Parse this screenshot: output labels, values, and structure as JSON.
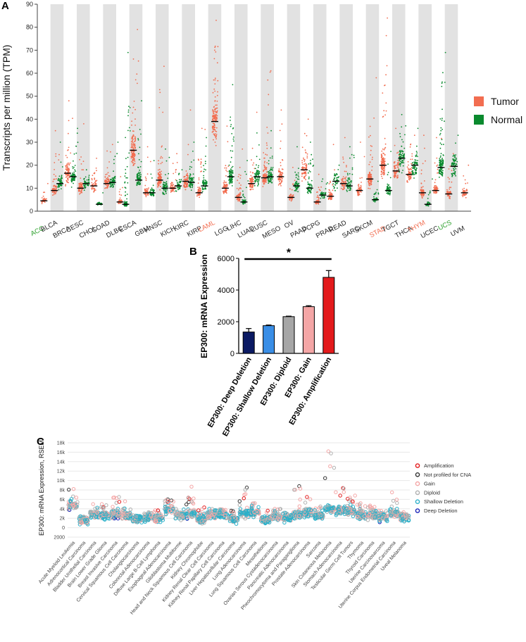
{
  "chart_data": [
    {
      "panel": "A",
      "type": "scatter",
      "ylabel": "Transcripts per million (TPM)",
      "ylim": [
        0,
        90
      ],
      "yticks": [
        0,
        10,
        20,
        30,
        40,
        50,
        60,
        70,
        80,
        90
      ],
      "legend": [
        {
          "name": "Tumor",
          "color": "#f26d50"
        },
        {
          "name": "Normal",
          "color": "#0a8a2e"
        }
      ],
      "cancers": [
        {
          "name": "ACC",
          "color": "#2ca02c",
          "tumor": 4.5,
          "normal": null,
          "tmax": 12,
          "nmax": null
        },
        {
          "name": "BLCA",
          "color": "#222222",
          "tumor": 9,
          "normal": 12,
          "tmax": 35,
          "nmax": 30
        },
        {
          "name": "BRCA",
          "color": "#222222",
          "tumor": 16.5,
          "normal": 15,
          "tmax": 48,
          "nmax": 36
        },
        {
          "name": "CESC",
          "color": "#222222",
          "tumor": 10,
          "normal": 12,
          "tmax": 38,
          "nmax": 18
        },
        {
          "name": "CHOL",
          "color": "#222222",
          "tumor": 11,
          "normal": 3,
          "tmax": 23,
          "nmax": 8
        },
        {
          "name": "COAD",
          "color": "#222222",
          "tumor": 12,
          "normal": 12.5,
          "tmax": 29,
          "nmax": 30
        },
        {
          "name": "DLBC",
          "color": "#222222",
          "tumor": 4,
          "normal": 3,
          "tmax": 15,
          "nmax": 69
        },
        {
          "name": "ESCA",
          "color": "#222222",
          "tumor": 26.5,
          "normal": 13.5,
          "tmax": 79,
          "nmax": 48
        },
        {
          "name": "GBM",
          "color": "#222222",
          "tumor": 8,
          "normal": 8,
          "tmax": 28,
          "nmax": 22
        },
        {
          "name": "HNSC",
          "color": "#222222",
          "tumor": 13.5,
          "normal": 10,
          "tmax": 63,
          "nmax": 27
        },
        {
          "name": "KICH",
          "color": "#222222",
          "tumor": 10,
          "normal": 11,
          "tmax": 25,
          "nmax": 18
        },
        {
          "name": "KIRC",
          "color": "#222222",
          "tumor": 13,
          "normal": 12.5,
          "tmax": 44,
          "nmax": 30
        },
        {
          "name": "KIRP",
          "color": "#222222",
          "tumor": 8,
          "normal": 11,
          "tmax": 36,
          "nmax": 32
        },
        {
          "name": "LAML",
          "color": "#f26d50",
          "tumor": 39,
          "normal": null,
          "tmax": 83,
          "nmax": null
        },
        {
          "name": "LGG",
          "color": "#222222",
          "tumor": 10,
          "normal": 15,
          "tmax": 37,
          "nmax": 55
        },
        {
          "name": "LIHC",
          "color": "#222222",
          "tumor": 6,
          "normal": 4,
          "tmax": 27,
          "nmax": 22
        },
        {
          "name": "LUAD",
          "color": "#222222",
          "tumor": 12,
          "normal": 15,
          "tmax": 43,
          "nmax": 34
        },
        {
          "name": "LUSC",
          "color": "#222222",
          "tumor": 14.5,
          "normal": 15,
          "tmax": 61,
          "nmax": 35
        },
        {
          "name": "MESO",
          "color": "#222222",
          "tumor": 15,
          "normal": null,
          "tmax": 44,
          "nmax": null
        },
        {
          "name": "OV",
          "color": "#222222",
          "tumor": 6,
          "normal": 11,
          "tmax": 19,
          "nmax": 28
        },
        {
          "name": "PAAD",
          "color": "#222222",
          "tumor": 18,
          "normal": 10,
          "tmax": 40,
          "nmax": 30
        },
        {
          "name": "PCPG",
          "color": "#222222",
          "tumor": 4,
          "normal": 7,
          "tmax": 16,
          "nmax": 14
        },
        {
          "name": "PRAD",
          "color": "#222222",
          "tumor": 6.5,
          "normal": 13,
          "tmax": 29,
          "nmax": 20
        },
        {
          "name": "READ",
          "color": "#222222",
          "tumor": 12,
          "normal": 11,
          "tmax": 32,
          "nmax": 28
        },
        {
          "name": "SARC",
          "color": "#222222",
          "tumor": 9,
          "normal": null,
          "tmax": 30,
          "nmax": null
        },
        {
          "name": "SKCM",
          "color": "#222222",
          "tumor": 14,
          "normal": 5,
          "tmax": 58,
          "nmax": 13
        },
        {
          "name": "STAD",
          "color": "#f26d50",
          "tumor": 20,
          "normal": 9,
          "tmax": 84,
          "nmax": 26
        },
        {
          "name": "TGCT",
          "color": "#222222",
          "tumor": 17.5,
          "normal": 23,
          "tmax": 36,
          "nmax": 42
        },
        {
          "name": "THCA",
          "color": "#222222",
          "tumor": 16,
          "normal": 20,
          "tmax": 33,
          "nmax": 36
        },
        {
          "name": "THYM",
          "color": "#f26d50",
          "tumor": 8,
          "normal": 3,
          "tmax": 33,
          "nmax": 14
        },
        {
          "name": "UCEC",
          "color": "#222222",
          "tumor": 9,
          "normal": 19,
          "tmax": 32,
          "nmax": 69
        },
        {
          "name": "UCS",
          "color": "#2ca02c",
          "tumor": 7.5,
          "normal": 19.5,
          "tmax": 25,
          "nmax": 33
        },
        {
          "name": "UVM",
          "color": "#222222",
          "tumor": 8,
          "normal": null,
          "tmax": 20,
          "nmax": null
        }
      ]
    },
    {
      "panel": "B",
      "type": "bar",
      "ylabel": "EP300: mRNA Expression",
      "ylim": [
        0,
        6000
      ],
      "yticks": [
        0,
        2000,
        4000,
        6000
      ],
      "significance": "*",
      "categories": [
        "EP300: Deep Deletion",
        "EP300: Shallow Deletion",
        "EP300: Diploid",
        "EP300: Gain",
        "EP300: Amplification"
      ],
      "values": [
        1350,
        1750,
        2320,
        2950,
        4800
      ],
      "errors": [
        220,
        40,
        30,
        60,
        430
      ],
      "colors": [
        "#0b1a63",
        "#3a8ee6",
        "#a6a6a6",
        "#f4a6a6",
        "#e31a1c"
      ]
    },
    {
      "panel": "C",
      "type": "scatter",
      "ylabel": "EP300: mRNA Expression, RSEM",
      "ylim": [
        -2000,
        18000
      ],
      "ytick_labels": [
        "18k",
        "16k",
        "14k",
        "12k",
        "10k",
        "8k",
        "6k",
        "4k",
        "2k",
        "0",
        "2000"
      ],
      "legend": [
        {
          "name": "Amplification",
          "color": "#e31a1c"
        },
        {
          "name": "Not profiled for CNA",
          "color": "#333333"
        },
        {
          "name": "Gain",
          "color": "#f4a6a6"
        },
        {
          "name": "Diploid",
          "color": "#b0b0b0"
        },
        {
          "name": "Shallow Deletion",
          "color": "#2bb0c9"
        },
        {
          "name": "Deep Deletion",
          "color": "#1a23b8"
        }
      ],
      "categories": [
        "Acute Myeloid Leukemia",
        "Adrenocortical Carcinoma",
        "Bladder Urothelial Carcinoma",
        "Brain Lower Grade Glioma",
        "Breast Invasive Carcinoma",
        "Cervical Squamous Cell Carcinoma",
        "Cholangiocarcinoma",
        "Colorectal Adenocarcinoma",
        "Diffuse Large B-Cell Lymphoma",
        "Esophageal Adenocarcinoma",
        "Glioblastoma Multiforme",
        "Head and Neck Squamous Cell Carcinoma",
        "Kidney Chromophobe",
        "Kidney Renal Clear Cell Carcinoma",
        "Kidney Renal Papillary Cell Carcinoma",
        "Liver Hepatocellular Carcinoma",
        "Lung Adenocarcinoma",
        "Lung Squamous Cell Carcinoma",
        "Mesothelioma",
        "Ovarian Serous Cystadenocarcinoma",
        "Pancreatic Adenocarcinoma",
        "Pheochromocytoma and Paraganglioma",
        "Prostate Adenocarcinoma",
        "Sarcoma",
        "Skin Cutaneous Melanoma",
        "Stomach Adenocarcinoma",
        "Testicular Germ Cell Tumors",
        "Thymoma",
        "Thyroid Carcinoma",
        "Uterine Carcinosarcoma",
        "Uterine Corpus Endometrial Carcinoma",
        "Uveal Melanoma"
      ],
      "medians": [
        4800,
        1500,
        2800,
        2600,
        2800,
        2600,
        1800,
        2200,
        2000,
        3800,
        2500,
        3000,
        1800,
        2700,
        2700,
        1800,
        3000,
        3200,
        1700,
        2300,
        2000,
        2800,
        3200,
        2500,
        3800,
        3600,
        3500,
        2600,
        2600,
        2200,
        3000,
        2200
      ],
      "maxima": [
        8200,
        2200,
        5000,
        5000,
        6500,
        5600,
        2400,
        3300,
        3700,
        6000,
        4000,
        8700,
        4300,
        4000,
        3900,
        3600,
        8500,
        5200,
        3600,
        4000,
        3200,
        8800,
        6500,
        4500,
        16200,
        8400,
        6800,
        5200,
        4700,
        3600,
        7500,
        3300
      ]
    }
  ],
  "panel_labels": {
    "a": "A",
    "b": "B",
    "c": "C"
  }
}
